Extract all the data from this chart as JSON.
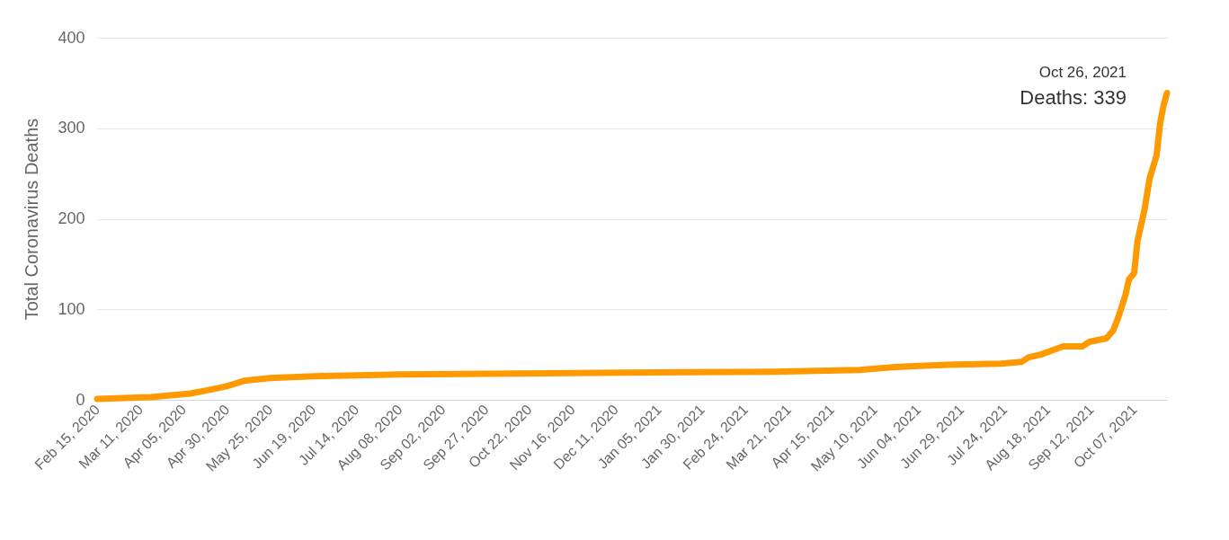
{
  "chart_data": {
    "type": "line",
    "ylabel": "Total Coronavirus Deaths",
    "ylim": [
      0,
      400
    ],
    "yticks": [
      0,
      100,
      200,
      300,
      400
    ],
    "grid": "y",
    "marker": "none",
    "line_style": "solid",
    "xlim": [
      "2020-02-15",
      "2021-10-26"
    ],
    "xticks": [
      {
        "value": "2020-02-15",
        "label": "Feb 15, 2020"
      },
      {
        "value": "2020-03-11",
        "label": "Mar 11, 2020"
      },
      {
        "value": "2020-04-05",
        "label": "Apr 05, 2020"
      },
      {
        "value": "2020-04-30",
        "label": "Apr 30, 2020"
      },
      {
        "value": "2020-05-25",
        "label": "May 25, 2020"
      },
      {
        "value": "2020-06-19",
        "label": "Jun 19, 2020"
      },
      {
        "value": "2020-07-14",
        "label": "Jul 14, 2020"
      },
      {
        "value": "2020-08-08",
        "label": "Aug 08, 2020"
      },
      {
        "value": "2020-09-02",
        "label": "Sep 02, 2020"
      },
      {
        "value": "2020-09-27",
        "label": "Sep 27, 2020"
      },
      {
        "value": "2020-10-22",
        "label": "Oct 22, 2020"
      },
      {
        "value": "2020-11-16",
        "label": "Nov 16, 2020"
      },
      {
        "value": "2020-12-11",
        "label": "Dec 11, 2020"
      },
      {
        "value": "2021-01-05",
        "label": "Jan 05, 2021"
      },
      {
        "value": "2021-01-30",
        "label": "Jan 30, 2021"
      },
      {
        "value": "2021-02-24",
        "label": "Feb 24, 2021"
      },
      {
        "value": "2021-03-21",
        "label": "Mar 21, 2021"
      },
      {
        "value": "2021-04-15",
        "label": "Apr 15, 2021"
      },
      {
        "value": "2021-05-10",
        "label": "May 10, 2021"
      },
      {
        "value": "2021-06-04",
        "label": "Jun 04, 2021"
      },
      {
        "value": "2021-06-29",
        "label": "Jun 29, 2021"
      },
      {
        "value": "2021-07-24",
        "label": "Jul 24, 2021"
      },
      {
        "value": "2021-08-18",
        "label": "Aug 18, 2021"
      },
      {
        "value": "2021-09-12",
        "label": "Sep 12, 2021"
      },
      {
        "value": "2021-10-07",
        "label": "Oct 07, 2021"
      }
    ],
    "x": [
      "2020-02-15",
      "2020-03-17",
      "2020-04-09",
      "2020-04-20",
      "2020-04-30",
      "2020-05-10",
      "2020-05-25",
      "2020-06-19",
      "2020-07-14",
      "2020-08-08",
      "2020-10-15",
      "2020-12-15",
      "2021-03-12",
      "2021-05-01",
      "2021-05-20",
      "2021-05-30",
      "2021-06-25",
      "2021-07-22",
      "2021-08-03",
      "2021-08-07",
      "2021-08-14",
      "2021-08-27",
      "2021-09-07",
      "2021-09-11",
      "2021-09-16",
      "2021-09-21",
      "2021-09-25",
      "2021-09-28",
      "2021-09-30",
      "2021-10-02",
      "2021-10-04",
      "2021-10-07",
      "2021-10-09",
      "2021-10-13",
      "2021-10-16",
      "2021-10-20",
      "2021-10-22",
      "2021-10-24",
      "2021-10-26"
    ],
    "series": [
      {
        "name": null,
        "color": "#ff9900",
        "values": [
          1,
          3,
          7,
          11,
          15,
          21,
          24,
          26,
          27,
          28,
          29,
          30,
          31,
          33,
          36,
          37,
          39,
          40,
          42,
          47,
          50,
          59,
          59,
          64,
          66,
          68,
          77,
          92,
          104,
          116,
          133,
          140,
          176,
          210,
          245,
          270,
          305,
          325,
          339
        ]
      }
    ],
    "annotations": [
      {
        "text": "Oct 26, 2021",
        "x": "2021-10-26",
        "y": 339
      },
      {
        "text": "Deaths: 339",
        "x": "2021-10-26",
        "y": 339
      }
    ]
  }
}
